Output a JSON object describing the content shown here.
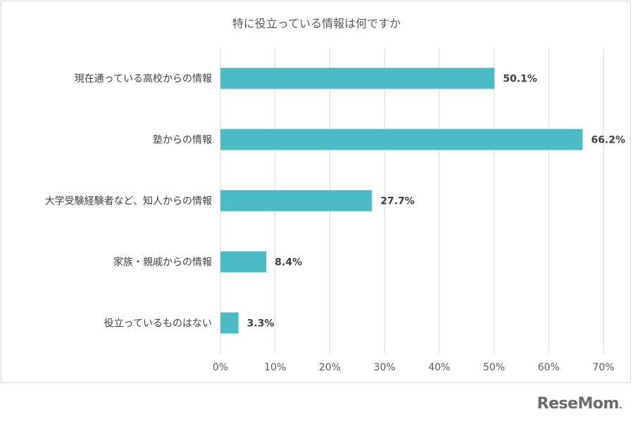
{
  "chart_data": {
    "type": "bar",
    "orientation": "horizontal",
    "title": "特に役立っている情報は何ですか",
    "categories": [
      "現在通っている高校からの情報",
      "塾からの情報",
      "大学受験経験者など、知人からの情報",
      "家族・親戚からの情報",
      "役立っているものはない"
    ],
    "values": [
      50.1,
      66.2,
      27.7,
      8.4,
      3.3
    ],
    "value_labels": [
      "50.1%",
      "66.2%",
      "27.7%",
      "8.4%",
      "3.3%"
    ],
    "x_ticks": [
      "0%",
      "10%",
      "20%",
      "30%",
      "40%",
      "50%",
      "60%",
      "70%"
    ],
    "xlim": [
      0,
      70
    ],
    "grid": true,
    "bar_color": "#4bbcc6"
  },
  "watermark": "ReseMom"
}
